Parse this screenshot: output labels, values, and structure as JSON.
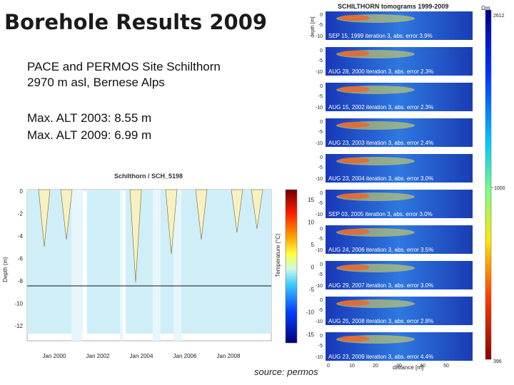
{
  "slide": {
    "title": "Borehole Results 2009",
    "site_line1": "PACE and PERMOS Site  Schilthorn",
    "site_line2": "2970 m asl, Bernese Alps",
    "alt_2003": "Max. ALT 2003: 8.55 m",
    "alt_2009": "Max. ALT 2009: 6.99 m",
    "source": "source: permos"
  },
  "tomograms": {
    "title": "SCHILTHORN tomograms 1999-2009",
    "y_axis_label": "depth [m]",
    "x_axis_label": "distance [m]",
    "colorbar_unit": "Ωm",
    "colorbar_top": "2612",
    "colorbar_mid": "1000",
    "colorbar_bottom": "396",
    "depth_ticks": [
      "0",
      "-5",
      "-10"
    ],
    "distance_ticks": [
      "0",
      "10",
      "20",
      "30",
      "40",
      "50"
    ],
    "panels": [
      {
        "label": "SEP 15, 1999  iteration 3, abs. error 3.9%"
      },
      {
        "label": "AUG 28, 2000  iteration 3, abs. error 2.3%"
      },
      {
        "label": "AUG 15, 2002  iteration 3, abs. error 2.3%"
      },
      {
        "label": "AUG 23, 2003  iteration 3, abs. error 2.4%"
      },
      {
        "label": "AUG 23, 2004  iteration 3, abs. error 3.0%"
      },
      {
        "label": "SEP 03, 2005  iteration 3, abs. error 3.0%"
      },
      {
        "label": "AUG 24, 2006  iteration 3, abs. error 3.5%"
      },
      {
        "label": "AUG 29, 2007  iteration 3, abs. error 3.0%"
      },
      {
        "label": "AUG 25, 2008  iteration 3, abs. error 2.8%"
      },
      {
        "label": "AUG 23, 2009  iteration 3, abs. error 4.4%"
      }
    ]
  },
  "ground_temp": {
    "title": "Schilthorn / SCH_5198",
    "y_axis_label": "Depth (m)",
    "colorbar_label": "Temperature (°C)",
    "y_ticks": [
      "0",
      "-2",
      "-4",
      "-6",
      "-8",
      "-10",
      "-12"
    ],
    "x_ticks": [
      "Jan 2000",
      "Jan 2002",
      "Jan 2004",
      "Jan 2006",
      "Jan 2008"
    ],
    "colorbar_ticks": [
      "15",
      "10",
      "5",
      "0",
      "-5",
      "-10",
      "-15"
    ]
  }
}
